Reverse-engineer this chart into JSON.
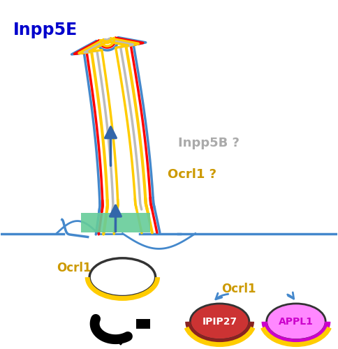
{
  "bg_color": "#ffffff",
  "inpp5e_label": "Inpp5E",
  "inpp5e_color": "#0000cc",
  "inpp5b_label": "Inpp5B ?",
  "inpp5b_color": "#aaaaaa",
  "ocrl1_q_label": "Ocrl1 ?",
  "ocrl1_q_color": "#cc9900",
  "ocrl1_left_label": "Ocrl1",
  "ocrl1_left_color": "#cc9900",
  "ocrl1_right_label": "Ocrl1",
  "ocrl1_right_color": "#cc9900",
  "red_color": "#ff0000",
  "blue_membrane_color": "#4488cc",
  "yellow_color": "#ffcc00",
  "gray_color": "#bbbbbb",
  "dark_blue_arrow": "#3366aa",
  "green_color": "#66cc99",
  "ipip27_label": "IPIP27",
  "ipip27_fill": "#cc3333",
  "ipip27_arc": "#882222",
  "appl1_label": "APPL1",
  "appl1_fill": "#ff88ff",
  "appl1_arc": "#cc00cc",
  "endo_edge": "#333333",
  "black": "#000000"
}
